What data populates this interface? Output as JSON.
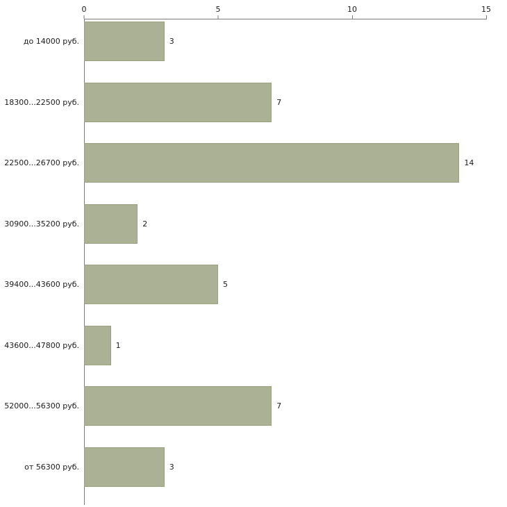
{
  "chart_data": {
    "type": "bar",
    "orientation": "horizontal",
    "title": "",
    "xlabel": "",
    "ylabel": "",
    "categories": [
      "до 14000 руб.",
      "18300...22500 руб.",
      "22500...26700 руб.",
      "30900...35200 руб.",
      "39400...43600 руб.",
      "43600...47800 руб.",
      "52000...56300 руб.",
      "от 56300 руб."
    ],
    "values": [
      3,
      7,
      14,
      2,
      5,
      1,
      7,
      3
    ],
    "xlim": [
      0,
      15
    ],
    "x_ticks": [
      0,
      5,
      10,
      15
    ],
    "grid": "off",
    "legend": "none",
    "bar_color": "#abb195",
    "bar_border_color": "#9aa17f",
    "axis_color": "#7a7a7a",
    "background_color": "#ffffff"
  }
}
